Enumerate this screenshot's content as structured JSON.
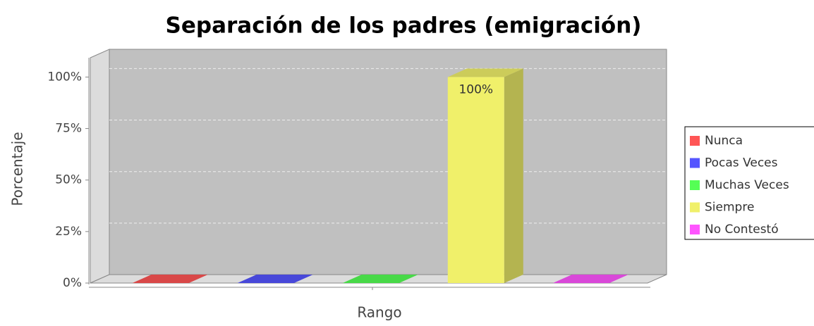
{
  "chart_data": {
    "type": "bar3d",
    "title": "Separación de los padres (emigración)",
    "x_label": "Rango",
    "y_label": "Porcentaje",
    "categories": [
      null
    ],
    "series": [
      {
        "name": "Nunca",
        "color": "#ff5555",
        "values": [
          0
        ]
      },
      {
        "name": "Pocas Veces",
        "color": "#5555ff",
        "values": [
          0
        ]
      },
      {
        "name": "Muchas Veces",
        "color": "#55ff55",
        "values": [
          0
        ]
      },
      {
        "name": "Siempre",
        "color": "#f0f06a",
        "values": [
          100
        ],
        "value_labels": [
          "100%"
        ]
      },
      {
        "name": "No Contestó",
        "color": "#ff55ff",
        "values": [
          0
        ]
      }
    ],
    "ylim": [
      0,
      108
    ],
    "yticks": [
      {
        "value": 0,
        "label": "0%"
      },
      {
        "value": 25,
        "label": "25%"
      },
      {
        "value": 50,
        "label": "50%"
      },
      {
        "value": 75,
        "label": "75%"
      },
      {
        "value": 100,
        "label": "100%"
      }
    ],
    "grid": true,
    "legend": "right"
  }
}
